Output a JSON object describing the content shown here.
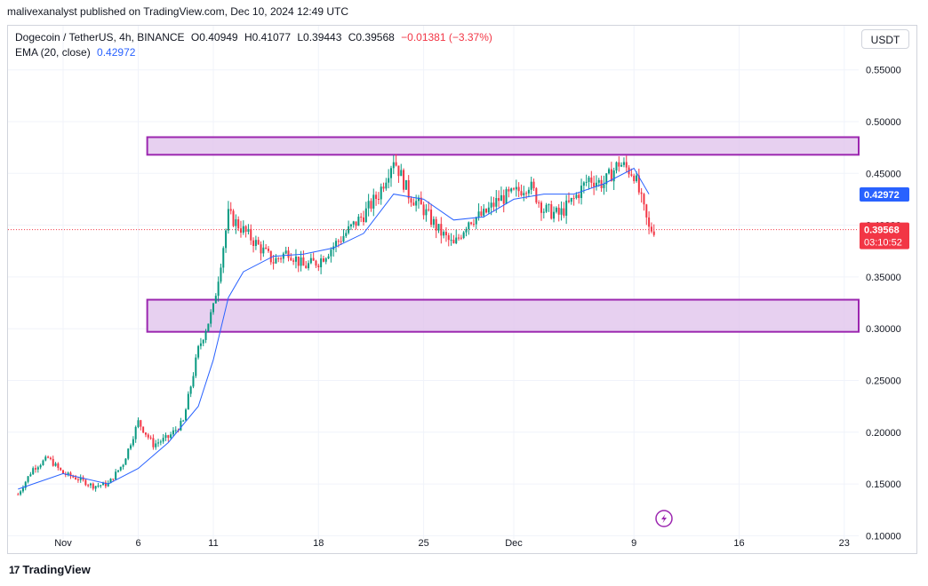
{
  "header": {
    "published": "malivexanalyst published on TradingView.com, Dec 10, 2024 12:49 UTC"
  },
  "legend": {
    "symbol": "Dogecoin / TetherUS, 4h, BINANCE",
    "open": "O0.40949",
    "high": "H0.41077",
    "low": "L0.39443",
    "close": "C0.39568",
    "change": "−0.01381 (−3.37%)",
    "ema_label": "EMA (20, close)",
    "ema_value": "0.42972"
  },
  "currency_button": "USDT",
  "brand": "TradingView",
  "colors": {
    "up": "#089981",
    "down": "#f23645",
    "ema": "#2962ff",
    "zone_fill": "#e1c4ec",
    "zone_border": "#9c27b0",
    "last_price_tag": "#f23645",
    "ema_tag": "#2962ff",
    "replay_icon": "#9c27b0"
  },
  "chart_data": {
    "type": "candlestick",
    "timeframe": "4h",
    "y_ticks": [
      "0.10000",
      "0.15000",
      "0.20000",
      "0.25000",
      "0.30000",
      "0.35000",
      "0.40000",
      "0.45000",
      "0.50000",
      "0.55000"
    ],
    "ylim": [
      0.1,
      0.55
    ],
    "x_ticks": [
      "Nov",
      "6",
      "11",
      "18",
      "25",
      "Dec",
      "9",
      "16",
      "23"
    ],
    "last_price": "0.39568",
    "countdown": "03:10:52",
    "ema_tag": "0.42972",
    "zones": [
      {
        "low": 0.468,
        "high": 0.485
      },
      {
        "low": 0.297,
        "high": 0.328
      }
    ],
    "price_path": [
      [
        "Oct 29",
        0.14
      ],
      [
        "Oct 30",
        0.165
      ],
      [
        "Oct 31",
        0.175
      ],
      [
        "Nov 1",
        0.16
      ],
      [
        "Nov 2",
        0.155
      ],
      [
        "Nov 3",
        0.148
      ],
      [
        "Nov 4",
        0.15
      ],
      [
        "Nov 5",
        0.17
      ],
      [
        "Nov 6",
        0.21
      ],
      [
        "Nov 7",
        0.188
      ],
      [
        "Nov 8",
        0.195
      ],
      [
        "Nov 9",
        0.21
      ],
      [
        "Nov 10",
        0.28
      ],
      [
        "Nov 11",
        0.32
      ],
      [
        "Nov 12",
        0.41
      ],
      [
        "Nov 13",
        0.395
      ],
      [
        "Nov 14",
        0.38
      ],
      [
        "Nov 15",
        0.365
      ],
      [
        "Nov 16",
        0.375
      ],
      [
        "Nov 17",
        0.36
      ],
      [
        "Nov 18",
        0.365
      ],
      [
        "Nov 19",
        0.38
      ],
      [
        "Nov 20",
        0.395
      ],
      [
        "Nov 21",
        0.41
      ],
      [
        "Nov 22",
        0.43
      ],
      [
        "Nov 23",
        0.465
      ],
      [
        "Nov 24",
        0.43
      ],
      [
        "Nov 25",
        0.415
      ],
      [
        "Nov 26",
        0.395
      ],
      [
        "Nov 27",
        0.38
      ],
      [
        "Nov 28",
        0.405
      ],
      [
        "Nov 29",
        0.41
      ],
      [
        "Nov 30",
        0.425
      ],
      [
        "Dec 1",
        0.43
      ],
      [
        "Dec 2",
        0.44
      ],
      [
        "Dec 3",
        0.415
      ],
      [
        "Dec 4",
        0.41
      ],
      [
        "Dec 5",
        0.425
      ],
      [
        "Dec 6",
        0.445
      ],
      [
        "Dec 7",
        0.44
      ],
      [
        "Dec 8",
        0.46
      ],
      [
        "Dec 9",
        0.45
      ],
      [
        "Dec 10",
        0.396
      ]
    ],
    "ema_path": [
      [
        "Oct 29",
        0.145
      ],
      [
        "Nov 1",
        0.16
      ],
      [
        "Nov 4",
        0.15
      ],
      [
        "Nov 6",
        0.165
      ],
      [
        "Nov 8",
        0.19
      ],
      [
        "Nov 10",
        0.225
      ],
      [
        "Nov 11",
        0.27
      ],
      [
        "Nov 12",
        0.33
      ],
      [
        "Nov 13",
        0.355
      ],
      [
        "Nov 15",
        0.37
      ],
      [
        "Nov 17",
        0.372
      ],
      [
        "Nov 19",
        0.378
      ],
      [
        "Nov 21",
        0.392
      ],
      [
        "Nov 23",
        0.43
      ],
      [
        "Nov 25",
        0.425
      ],
      [
        "Nov 27",
        0.405
      ],
      [
        "Nov 29",
        0.408
      ],
      [
        "Dec 1",
        0.425
      ],
      [
        "Dec 3",
        0.43
      ],
      [
        "Dec 5",
        0.43
      ],
      [
        "Dec 7",
        0.44
      ],
      [
        "Dec 9",
        0.455
      ],
      [
        "Dec 10",
        0.43
      ]
    ]
  }
}
